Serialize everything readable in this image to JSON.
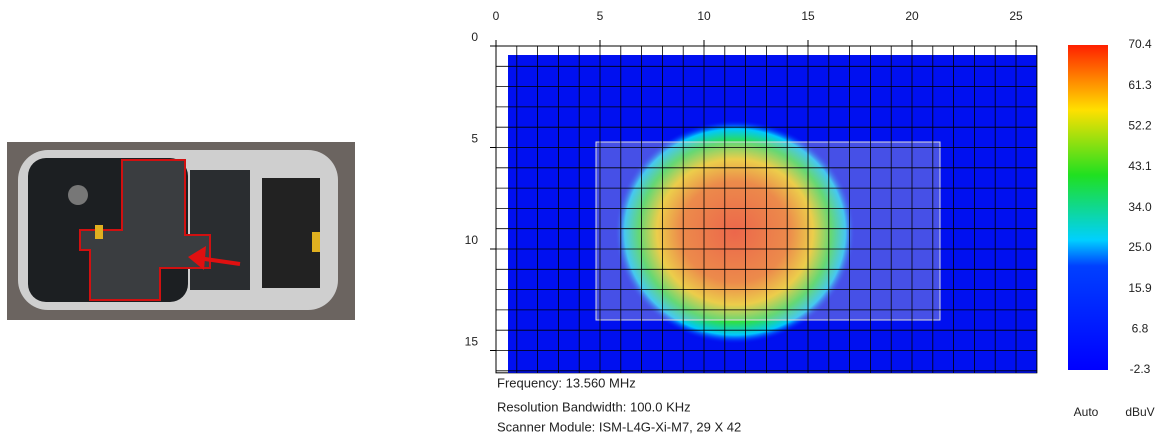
{
  "scan_plot": {
    "xlim": [
      0,
      26
    ],
    "ylim": [
      0,
      16.1
    ],
    "xticks": [
      0,
      5,
      10,
      15,
      20,
      25
    ],
    "yticks": [
      0,
      5,
      10,
      15
    ]
  },
  "colorbar": {
    "lim": [
      -2.3,
      70.4
    ],
    "ticks": [
      70.4,
      61.3,
      52.2,
      43.1,
      {
        "value": 34,
        "label": "34.0"
      },
      {
        "value": 25,
        "label": "25.0"
      },
      15.9,
      6.8,
      -2.3
    ],
    "mode": "Auto",
    "unit": "dBuV"
  },
  "info": [
    "Frequency: 13.560 MHz",
    "Resolution Bandwidth: 100.0 KHz",
    "Scanner Module: ISM-L4G-Xi-M7, 29 X 42"
  ]
}
